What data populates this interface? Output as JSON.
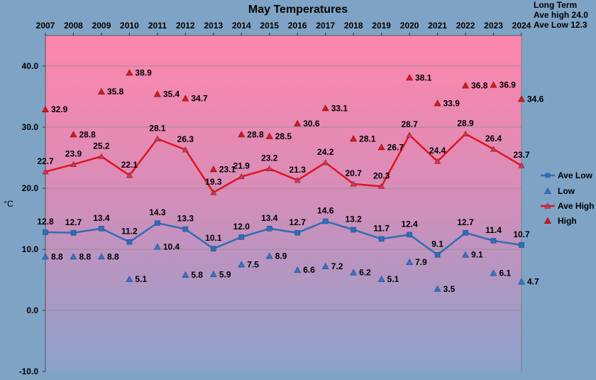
{
  "chart_data": {
    "type": "line",
    "title": "May Temperatures",
    "ylabel": "°C",
    "ylim": [
      -10,
      45
    ],
    "yticks": [
      -10,
      0,
      10,
      20,
      30,
      40
    ],
    "ytick_labels": [
      "-10.0",
      "0.0",
      "10.0",
      "20.0",
      "30.0",
      "40.0"
    ],
    "x_position": "top",
    "grid": true,
    "legend_position": "right",
    "categories": [
      "2007",
      "2008",
      "2009",
      "2010",
      "2011",
      "2012",
      "2013",
      "2014",
      "2015",
      "2016",
      "2017",
      "2018",
      "2019",
      "2020",
      "2021",
      "2022",
      "2023",
      "2024"
    ],
    "series": [
      {
        "name": "Ave Low",
        "style": "line-square",
        "color": "#2f6db5",
        "values": [
          12.8,
          12.7,
          13.4,
          11.2,
          14.3,
          13.3,
          10.1,
          12.0,
          13.4,
          12.7,
          14.6,
          13.2,
          11.7,
          12.4,
          9.1,
          12.7,
          11.4,
          10.7
        ],
        "labels": [
          "12.8",
          "12.7",
          "13.4",
          "11.2",
          "14.3",
          "13.3",
          "10.1",
          "12.0",
          "13.4",
          "12.7",
          "14.6",
          "13.2",
          "11.7",
          "12.4",
          "9.1",
          "12.7",
          "11.4",
          "10.7"
        ]
      },
      {
        "name": "Low",
        "style": "marker-triangle",
        "color": "#3a72c0",
        "values": [
          8.8,
          8.8,
          8.8,
          5.1,
          10.4,
          5.8,
          5.9,
          7.5,
          8.9,
          6.6,
          7.2,
          6.2,
          5.1,
          7.9,
          3.5,
          9.1,
          6.1,
          4.7
        ],
        "labels": [
          "8.8",
          "8.8",
          "8.8",
          "5.1",
          "10.4",
          "5.8",
          "5.9",
          "7.5",
          "8.9",
          "6.6",
          "7.2",
          "6.2",
          "5.1",
          "7.9",
          "3.5",
          "9.1",
          "6.1",
          "4.7"
        ]
      },
      {
        "name": "Ave High",
        "style": "line-triangle",
        "color": "#e0141e",
        "values": [
          22.7,
          23.9,
          25.2,
          22.1,
          28.1,
          26.3,
          19.3,
          21.9,
          23.2,
          21.3,
          24.2,
          20.7,
          20.3,
          28.7,
          24.4,
          28.9,
          26.4,
          23.7
        ],
        "labels": [
          "22.7",
          "23.9",
          "25.2",
          "22.1",
          "28.1",
          "26.3",
          "19.3",
          "21.9",
          "23.2",
          "21.3",
          "24.2",
          "20.7",
          "20.3",
          "28.7",
          "24.4",
          "28.9",
          "26.4",
          "23.7"
        ]
      },
      {
        "name": "High",
        "style": "marker-triangle",
        "color": "#d81a1a",
        "values": [
          32.9,
          28.8,
          35.8,
          38.9,
          35.4,
          34.7,
          23.1,
          28.8,
          28.5,
          30.6,
          33.1,
          28.1,
          26.7,
          38.1,
          33.9,
          36.8,
          36.9,
          34.6
        ],
        "labels": [
          "32.9",
          "28.8",
          "35.8",
          "38.9",
          "35.4",
          "34.7",
          "23.1",
          "28.8",
          "28.5",
          "30.6",
          "33.1",
          "28.1",
          "26.7",
          "38.1",
          "33.9",
          "36.8",
          "36.9",
          "34.6"
        ]
      }
    ],
    "annotation": {
      "line1": "Long Term",
      "line2": "Ave high  24.0",
      "line3": "Ave Low  12.3"
    }
  }
}
